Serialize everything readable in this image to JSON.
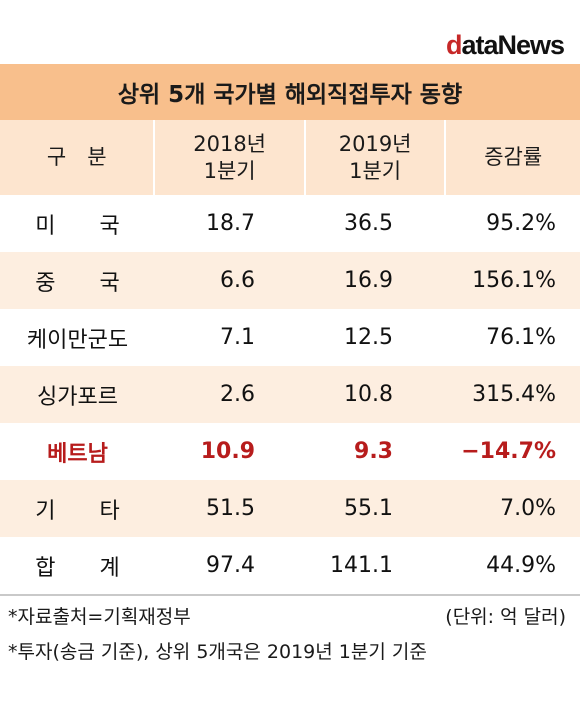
{
  "logo": {
    "first_letter": "d",
    "rest": "ataNews"
  },
  "table": {
    "title": "상위 5개 국가별 해외직접투자 동향",
    "headers": [
      {
        "line1": "구　분",
        "line2": ""
      },
      {
        "line1": "2018년",
        "line2": "1분기"
      },
      {
        "line1": "2019년",
        "line2": "1분기"
      },
      {
        "line1": "증감률",
        "line2": ""
      }
    ],
    "rows": [
      {
        "name": "미　　국",
        "y2018": "18.7",
        "y2019": "36.5",
        "change": "95.2%"
      },
      {
        "name": "중　　국",
        "y2018": "6.6",
        "y2019": "16.9",
        "change": "156.1%"
      },
      {
        "name": "케이만군도",
        "y2018": "7.1",
        "y2019": "12.5",
        "change": "76.1%"
      },
      {
        "name": "싱가포르",
        "y2018": "2.6",
        "y2019": "10.8",
        "change": "315.4%"
      },
      {
        "name": "베트남",
        "y2018": "10.9",
        "y2019": "9.3",
        "change": "−14.7%"
      },
      {
        "name": "기　　타",
        "y2018": "51.5",
        "y2019": "55.1",
        "change": "7.0%"
      },
      {
        "name": "합　　계",
        "y2018": "97.4",
        "y2019": "141.1",
        "change": "44.9%"
      }
    ],
    "highlight_color": "#b71c1c",
    "title_color": "#f8bf8c",
    "header_color": "#fde5cf"
  },
  "notes": {
    "source": "*자료출처=기획재정부",
    "unit": "(단위: 억 달러)",
    "footnote": "*투자(송금 기준), 상위 5개국은 2019년 1분기 기준"
  }
}
